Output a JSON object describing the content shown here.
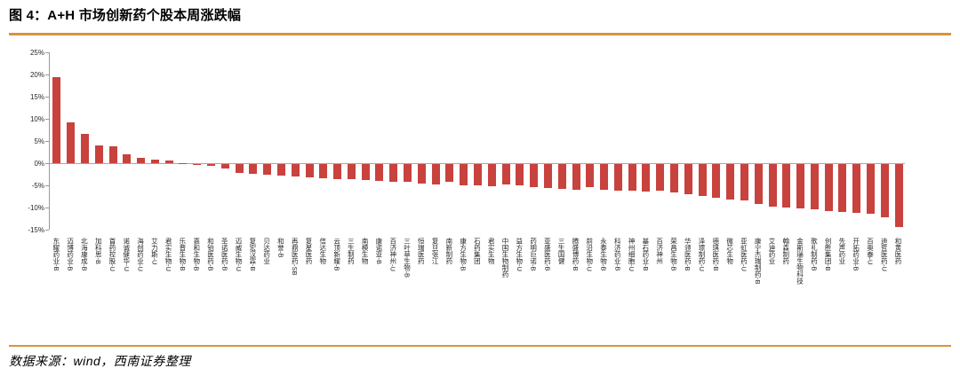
{
  "title": "图 4：A+H 市场创新药个股本周涨跌幅",
  "source": "数据来源：wind，西南证券整理",
  "colors": {
    "bar": "#C8423E",
    "rule": "#D6953E",
    "axis": "#9A9A9A",
    "zero_line": "#A6A6A6",
    "tick_text": "#262626",
    "title_text": "#000000"
  },
  "chart_data": {
    "type": "bar",
    "title": "A+H 市场创新药个股本周涨跌幅",
    "xlabel": "",
    "ylabel": "",
    "unit": "%",
    "ylim": [
      -15,
      25
    ],
    "ytick_step": 5,
    "yticks": [
      25,
      20,
      15,
      10,
      5,
      0,
      -5,
      -10,
      -15
    ],
    "grid": false,
    "legend": "none",
    "categories": [
      "东曜药业-B",
      "迈博药业-B",
      "北海康成-B",
      "加科思-B",
      "首药控股-U",
      "诺诚健华-U",
      "海创药业-U",
      "艾力斯-U",
      "君实生物-U",
      "乐普生物-B",
      "嘉和生物-B",
      "和铂医药-B",
      "圣诺医药-B",
      "迈威生物-U",
      "复宏汉霖-B",
      "贝达药业",
      "和誉-B",
      "再鼎医药-SB",
      "复星医药",
      "信达生物",
      "云顶新耀-B",
      "三生制药",
      "南模生物",
      "康诺亚-B",
      "百济神州-U",
      "三叶草生物-B",
      "恒瑞医药",
      "复旦张江",
      "南新制药",
      "康方生物-B",
      "石药集团",
      "君实生物",
      "中国生物制药",
      "益方生物-U",
      "药明巨诺-B",
      "亚盛医药-B",
      "三生国健",
      "腾盛博药-B",
      "前沿生物-U",
      "永泰生物-B",
      "科济药业-B",
      "神州细胞-U",
      "基石药业-B",
      "百济神州",
      "荣昌生物-B",
      "华领医药-B",
      "泽璟制药-U",
      "德琪医药-B",
      "微芯生物",
      "亚虹医药-U",
      "康宁杰瑞制药-B",
      "艾迪药业",
      "翰森制药",
      "金斯瑞生物科技",
      "歌礼制药-B",
      "创胜集团-B",
      "先声药业",
      "开拓药业-B",
      "百奥泰-U",
      "迪哲医药-U",
      "和黄医药"
    ],
    "values": [
      19.4,
      9.3,
      6.7,
      4.0,
      3.8,
      2.0,
      1.2,
      0.8,
      0.7,
      0.1,
      -0.1,
      -0.4,
      -0.9,
      -2.0,
      -2.2,
      -2.3,
      -2.5,
      -2.7,
      -2.9,
      -3.1,
      -3.3,
      -3.4,
      -3.6,
      -3.8,
      -3.9,
      -4.0,
      -4.3,
      -4.5,
      -4.0,
      -4.7,
      -4.8,
      -5.0,
      -4.5,
      -4.8,
      -5.2,
      -5.3,
      -5.5,
      -5.7,
      -5.2,
      -5.7,
      -5.9,
      -6.0,
      -6.2,
      -5.9,
      -6.3,
      -6.7,
      -7.2,
      -7.5,
      -8.0,
      -8.2,
      -9.0,
      -9.5,
      -9.7,
      -10.0,
      -10.1,
      -10.5,
      -10.7,
      -10.9,
      -11.2,
      -11.9,
      -14.2
    ]
  }
}
